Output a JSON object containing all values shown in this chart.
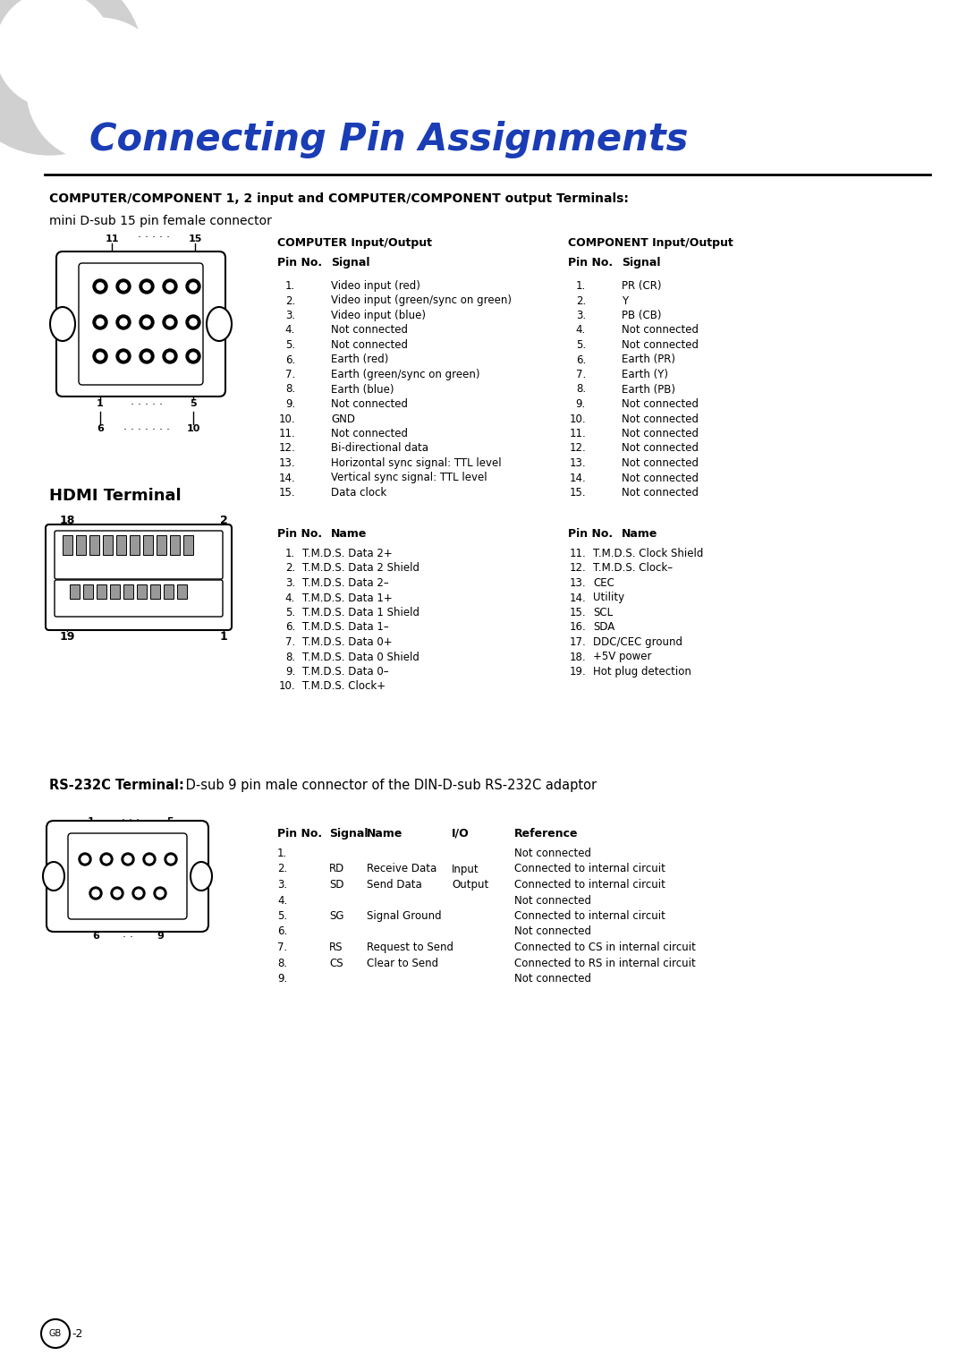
{
  "title": "Connecting Pin Assignments",
  "title_color": "#1a3db5",
  "bg_color": "#ffffff",
  "section1_bold": "COMPUTER/COMPONENT 1, 2 input and COMPUTER/COMPONENT output Terminals:",
  "section1_sub": "mini D-sub 15 pin female connector",
  "computer_io_title": "COMPUTER Input/Output",
  "computer_pins": [
    [
      "1.",
      "Video input (red)"
    ],
    [
      "2.",
      "Video input (green/sync on green)"
    ],
    [
      "3.",
      "Video input (blue)"
    ],
    [
      "4.",
      "Not connected"
    ],
    [
      "5.",
      "Not connected"
    ],
    [
      "6.",
      "Earth (red)"
    ],
    [
      "7.",
      "Earth (green/sync on green)"
    ],
    [
      "8.",
      "Earth (blue)"
    ],
    [
      "9.",
      "Not connected"
    ],
    [
      "10.",
      "GND"
    ],
    [
      "11.",
      "Not connected"
    ],
    [
      "12.",
      "Bi-directional data"
    ],
    [
      "13.",
      "Horizontal sync signal: TTL level"
    ],
    [
      "14.",
      "Vertical sync signal: TTL level"
    ],
    [
      "15.",
      "Data clock"
    ]
  ],
  "component_io_title": "COMPONENT Input/Output",
  "component_pins": [
    [
      "1.",
      "PR (CR)"
    ],
    [
      "2.",
      "Y"
    ],
    [
      "3.",
      "PB (CB)"
    ],
    [
      "4.",
      "Not connected"
    ],
    [
      "5.",
      "Not connected"
    ],
    [
      "6.",
      "Earth (PR)"
    ],
    [
      "7.",
      "Earth (Y)"
    ],
    [
      "8.",
      "Earth (PB)"
    ],
    [
      "9.",
      "Not connected"
    ],
    [
      "10.",
      "Not connected"
    ],
    [
      "11.",
      "Not connected"
    ],
    [
      "12.",
      "Not connected"
    ],
    [
      "13.",
      "Not connected"
    ],
    [
      "14.",
      "Not connected"
    ],
    [
      "15.",
      "Not connected"
    ]
  ],
  "hdmi_title": "HDMI Terminal",
  "hdmi_pins_left": [
    [
      "1.",
      "T.M.D.S. Data 2+"
    ],
    [
      "2.",
      "T.M.D.S. Data 2 Shield"
    ],
    [
      "3.",
      "T.M.D.S. Data 2–"
    ],
    [
      "4.",
      "T.M.D.S. Data 1+"
    ],
    [
      "5.",
      "T.M.D.S. Data 1 Shield"
    ],
    [
      "6.",
      "T.M.D.S. Data 1–"
    ],
    [
      "7.",
      "T.M.D.S. Data 0+"
    ],
    [
      "8.",
      "T.M.D.S. Data 0 Shield"
    ],
    [
      "9.",
      "T.M.D.S. Data 0–"
    ],
    [
      "10.",
      "T.M.D.S. Clock+"
    ]
  ],
  "hdmi_pins_right": [
    [
      "11.",
      "T.M.D.S. Clock Shield"
    ],
    [
      "12.",
      "T.M.D.S. Clock–"
    ],
    [
      "13.",
      "CEC"
    ],
    [
      "14.",
      "Utility"
    ],
    [
      "15.",
      "SCL"
    ],
    [
      "16.",
      "SDA"
    ],
    [
      "17.",
      "DDC/CEC ground"
    ],
    [
      "18.",
      "+5V power"
    ],
    [
      "19.",
      "Hot plug detection"
    ]
  ],
  "rs232_bold": "RS-232C Terminal:",
  "rs232_rest": " D-sub 9 pin male connector of the DIN-D-sub RS-232C adaptor",
  "rs232_headers": [
    "Pin No.",
    "Signal",
    "Name",
    "I/O",
    "Reference"
  ],
  "rs232_pins": [
    [
      "1.",
      "",
      "",
      "",
      "Not connected"
    ],
    [
      "2.",
      "RD",
      "Receive Data",
      "Input",
      "Connected to internal circuit"
    ],
    [
      "3.",
      "SD",
      "Send Data",
      "Output",
      "Connected to internal circuit"
    ],
    [
      "4.",
      "",
      "",
      "",
      "Not connected"
    ],
    [
      "5.",
      "SG",
      "Signal Ground",
      "",
      "Connected to internal circuit"
    ],
    [
      "6.",
      "",
      "",
      "",
      "Not connected"
    ],
    [
      "7.",
      "RS",
      "Request to Send",
      "",
      "Connected to CS in internal circuit"
    ],
    [
      "8.",
      "CS",
      "Clear to Send",
      "",
      "Connected to RS in internal circuit"
    ],
    [
      "9.",
      "",
      "",
      "",
      "Not connected"
    ]
  ]
}
